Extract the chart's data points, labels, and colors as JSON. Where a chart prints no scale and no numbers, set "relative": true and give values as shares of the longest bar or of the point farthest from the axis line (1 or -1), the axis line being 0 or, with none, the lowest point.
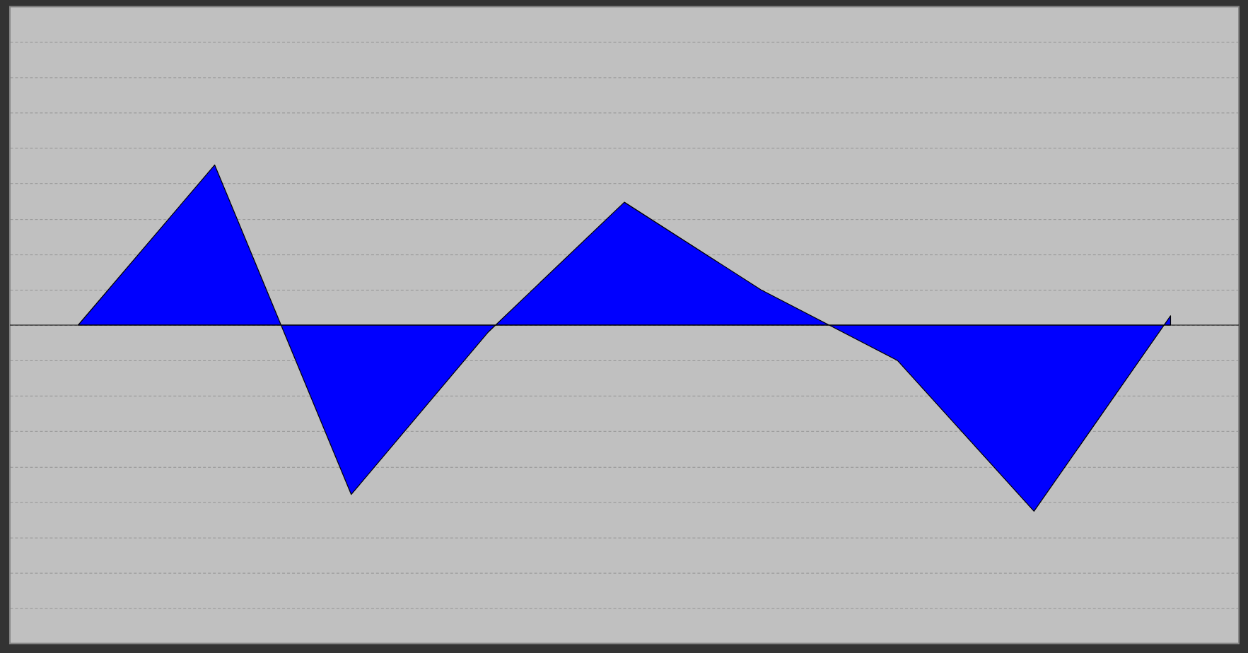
{
  "chart_data": {
    "type": "area",
    "relative": true,
    "categories": [
      null,
      null,
      null,
      null,
      null,
      null,
      null,
      null,
      null
    ],
    "series": [
      {
        "color": "#0000ff",
        "values": [
          0,
          0.86,
          -0.91,
          -0.04,
          0.66,
          0.19,
          -0.19,
          -1,
          0.05
        ]
      }
    ],
    "grid": "y"
  }
}
